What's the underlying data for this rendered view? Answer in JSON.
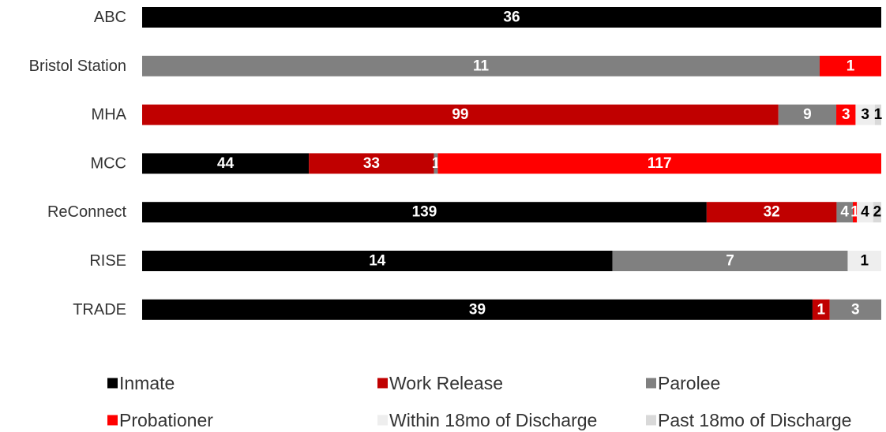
{
  "chart_data": {
    "type": "bar",
    "orientation": "horizontal",
    "stacked": "100%",
    "title": "",
    "xlabel": "",
    "ylabel": "",
    "grid": false,
    "legend_position": "bottom",
    "categories": [
      "ABC",
      "Bristol Station",
      "MHA",
      "MCC",
      "ReConnect",
      "RISE",
      "TRADE"
    ],
    "series": [
      {
        "name": "Inmate",
        "color": "#000000",
        "label_color": "#ffffff",
        "values": [
          36,
          0,
          0,
          44,
          139,
          14,
          39
        ]
      },
      {
        "name": "Work Release",
        "color": "#c00000",
        "label_color": "#ffffff",
        "values": [
          0,
          0,
          99,
          33,
          32,
          0,
          1
        ]
      },
      {
        "name": "Parolee",
        "color": "#808080",
        "label_color": "#ffffff",
        "values": [
          0,
          11,
          9,
          1,
          4,
          7,
          3
        ]
      },
      {
        "name": "Probationer",
        "color": "#ff0000",
        "label_color": "#ffffff",
        "values": [
          0,
          1,
          3,
          117,
          1,
          0,
          0
        ]
      },
      {
        "name": "Within 18mo of Discharge",
        "color": "#eeeeee",
        "label_color": "#000000",
        "values": [
          0,
          0,
          3,
          0,
          4,
          1,
          0
        ]
      },
      {
        "name": "Past 18mo of Discharge",
        "color": "#d9d9d9",
        "label_color": "#000000",
        "values": [
          0,
          0,
          1,
          0,
          2,
          0,
          0
        ]
      }
    ]
  }
}
